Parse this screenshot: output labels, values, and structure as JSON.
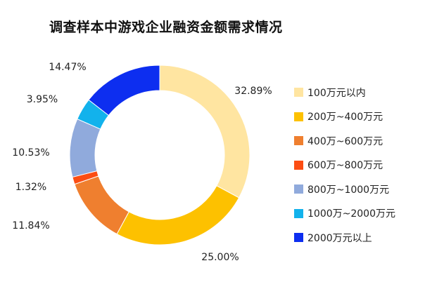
{
  "chart_data": {
    "type": "pie",
    "title": "调查样本中游戏企业融资金额需求情况",
    "categories": [
      "100万元以内",
      "200万~400万元",
      "400万~600万元",
      "600万~800万元",
      "800万~1000万元",
      "1000万~2000万元",
      "2000万元以上"
    ],
    "values": [
      32.89,
      25.0,
      11.84,
      1.32,
      10.53,
      3.95,
      14.47
    ],
    "value_labels": [
      "32.89%",
      "25.00%",
      "11.84%",
      "1.32%",
      "10.53%",
      "3.95%",
      "14.47%"
    ],
    "colors": [
      "#FFE5A1",
      "#FDC100",
      "#EF7F2F",
      "#FC4D13",
      "#90AADC",
      "#12B2EC",
      "#0D2EF0"
    ],
    "donut": true,
    "start_angle": "12 o'clock",
    "direction": "clockwise",
    "legend_position": "right"
  }
}
